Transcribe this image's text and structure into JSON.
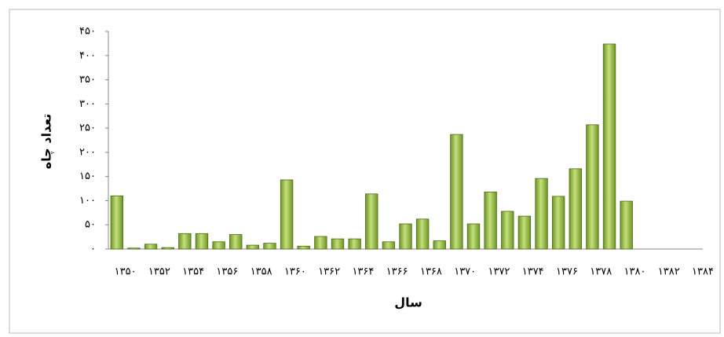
{
  "chart_data": {
    "type": "bar",
    "y_label": "تعداد چاه",
    "x_label": "سال",
    "categories": [
      "۱۳۵۰",
      null,
      "۱۳۵۲",
      null,
      "۱۳۵۴",
      null,
      "۱۳۵۶",
      null,
      "۱۳۵۸",
      null,
      "۱۳۶۰",
      null,
      "۱۳۶۲",
      null,
      "۱۳۶۴",
      null,
      "۱۳۶۶",
      null,
      "۱۳۶۸",
      null,
      "۱۳۷۰",
      null,
      "۱۳۷۲",
      null,
      "۱۳۷۴",
      null,
      "۱۳۷۶",
      null,
      "۱۳۷۸",
      null,
      "۱۳۸۰",
      null,
      "۱۳۸۲",
      null,
      "۱۳۸۴"
    ],
    "values": [
      110,
      2,
      10,
      3,
      32,
      32,
      15,
      30,
      8,
      12,
      143,
      6,
      26,
      21,
      21,
      114,
      15,
      52,
      62,
      17,
      237,
      52,
      118,
      78,
      68,
      146,
      109,
      166,
      257,
      424,
      99,
      0,
      0,
      0,
      0
    ],
    "color": "#8fb83c",
    "ylim": [
      0,
      450
    ],
    "yticks": [
      {
        "value": 0,
        "label": "۰"
      },
      {
        "value": 50,
        "label": "۵۰"
      },
      {
        "value": 100,
        "label": "۱۰۰"
      },
      {
        "value": 150,
        "label": "۱۵۰"
      },
      {
        "value": 200,
        "label": "۲۰۰"
      },
      {
        "value": 250,
        "label": "۲۵۰"
      },
      {
        "value": 300,
        "label": "۳۰۰"
      },
      {
        "value": 350,
        "label": "۳۵۰"
      },
      {
        "value": 400,
        "label": "۴۰۰"
      },
      {
        "value": 450,
        "label": "۴۵۰"
      }
    ]
  }
}
